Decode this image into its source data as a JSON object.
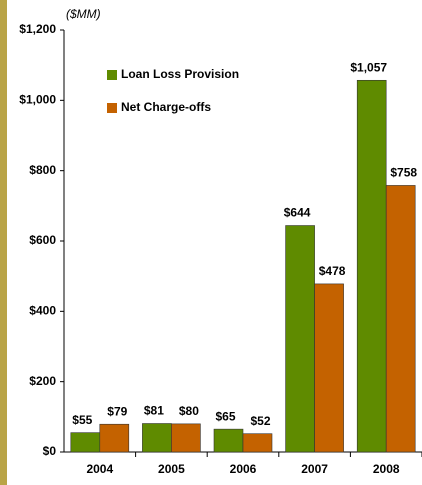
{
  "chart_data": {
    "type": "bar",
    "unit_label": "($MM)",
    "categories": [
      "2004",
      "2005",
      "2006",
      "2007",
      "2008"
    ],
    "series": [
      {
        "name": "Loan Loss Provision",
        "color": "#5f8b00",
        "values": [
          55,
          81,
          65,
          644,
          1057
        ],
        "value_labels": [
          "$55",
          "$81",
          "$65",
          "$644",
          "$1,057"
        ]
      },
      {
        "name": "Net Charge-offs",
        "color": "#c46200",
        "values": [
          79,
          80,
          52,
          478,
          758
        ],
        "value_labels": [
          "$79",
          "$80",
          "$52",
          "$478",
          "$758"
        ]
      }
    ],
    "ylim": [
      0,
      1200
    ],
    "yticks": [
      {
        "value": 0,
        "label": "$0"
      },
      {
        "value": 200,
        "label": "$200"
      },
      {
        "value": 400,
        "label": "$400"
      },
      {
        "value": 600,
        "label": "$600"
      },
      {
        "value": 800,
        "label": "$800"
      },
      {
        "value": 1000,
        "label": "$1,000"
      },
      {
        "value": 1200,
        "label": "$1,200"
      }
    ],
    "legend": "upper-left"
  }
}
